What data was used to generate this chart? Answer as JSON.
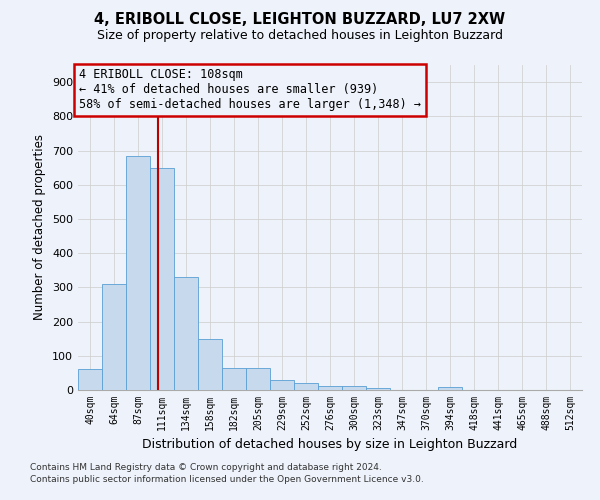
{
  "title": "4, ERIBOLL CLOSE, LEIGHTON BUZZARD, LU7 2XW",
  "subtitle": "Size of property relative to detached houses in Leighton Buzzard",
  "xlabel": "Distribution of detached houses by size in Leighton Buzzard",
  "ylabel": "Number of detached properties",
  "footnote1": "Contains HM Land Registry data © Crown copyright and database right 2024.",
  "footnote2": "Contains public sector information licensed under the Open Government Licence v3.0.",
  "bar_labels": [
    "40sqm",
    "64sqm",
    "87sqm",
    "111sqm",
    "134sqm",
    "158sqm",
    "182sqm",
    "205sqm",
    "229sqm",
    "252sqm",
    "276sqm",
    "300sqm",
    "323sqm",
    "347sqm",
    "370sqm",
    "394sqm",
    "418sqm",
    "441sqm",
    "465sqm",
    "488sqm",
    "512sqm"
  ],
  "bar_values": [
    60,
    310,
    685,
    650,
    330,
    150,
    65,
    65,
    30,
    20,
    12,
    12,
    5,
    0,
    0,
    8,
    0,
    0,
    0,
    0,
    0
  ],
  "bar_color": "#c6d9ed",
  "bar_edge_color": "#5a9fd4",
  "grid_color": "#cccccc",
  "vline_position": 2.85,
  "vline_color": "#bb0000",
  "ann_line1": "4 ERIBOLL CLOSE: 108sqm",
  "ann_line2": "← 41% of detached houses are smaller (939)",
  "ann_line3": "58% of semi-detached houses are larger (1,348) →",
  "ann_border_color": "#cc0000",
  "ylim": [
    0,
    950
  ],
  "yticks": [
    0,
    100,
    200,
    300,
    400,
    500,
    600,
    700,
    800,
    900
  ],
  "bg_color": "#eef2fa",
  "title_fontsize": 10.5,
  "subtitle_fontsize": 9,
  "ylabel_fontsize": 8.5,
  "xlabel_fontsize": 9,
  "tick_fontsize": 7,
  "ann_fontsize": 8.5,
  "footnote_fontsize": 6.5
}
